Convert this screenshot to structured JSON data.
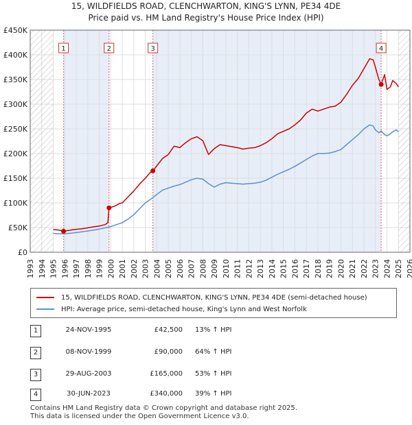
{
  "header": {
    "title_line1": "15, WILDFIELDS ROAD, CLENCHWARTON, KING'S LYNN, PE34 4DE",
    "title_line2": "Price paid vs. HM Land Registry's House Price Index (HPI)"
  },
  "colors": {
    "price_line": "#cc0000",
    "hpi_line": "#5b8fcf",
    "shade": "#e8eef8",
    "marker_line": "#e06060"
  },
  "chart_data": {
    "type": "line",
    "title": "Price paid vs. HM Land Registry's House Price Index (HPI)",
    "xlabel": "",
    "ylabel": "",
    "xlim": [
      1993,
      2026
    ],
    "ylim": [
      0,
      450000
    ],
    "y_ticks": [
      0,
      50000,
      100000,
      150000,
      200000,
      250000,
      300000,
      350000,
      400000,
      450000
    ],
    "y_tick_labels": [
      "£0",
      "£50K",
      "£100K",
      "£150K",
      "£200K",
      "£250K",
      "£300K",
      "£350K",
      "£400K",
      "£450K"
    ],
    "x_ticks": [
      1993,
      1994,
      1995,
      1996,
      1997,
      1998,
      1999,
      2000,
      2001,
      2002,
      2003,
      2004,
      2005,
      2006,
      2007,
      2008,
      2009,
      2010,
      2011,
      2012,
      2013,
      2014,
      2015,
      2016,
      2017,
      2018,
      2019,
      2020,
      2021,
      2022,
      2023,
      2024,
      2025,
      2026
    ],
    "hatched_ranges": [
      [
        1993,
        1995.0
      ],
      [
        2025.0,
        2026
      ]
    ],
    "shaded_ranges": [
      [
        1995.9,
        1999.85
      ],
      [
        2003.66,
        2023.5
      ]
    ],
    "series": [
      {
        "name": "15, WILDFIELDS ROAD, CLENCHWARTON, KING'S LYNN, PE34 4DE (semi-detached house)",
        "x": [
          1995.0,
          1995.5,
          1995.9,
          1996.3,
          1996.8,
          1997.5,
          1998.0,
          1998.5,
          1999.0,
          1999.5,
          1999.75,
          1999.85,
          2000.3,
          2000.8,
          2001.0,
          2001.5,
          2002.0,
          2002.5,
          2003.0,
          2003.4,
          2003.66,
          2004.0,
          2004.5,
          2005.0,
          2005.5,
          2006.0,
          2006.5,
          2007.0,
          2007.5,
          2008.0,
          2008.5,
          2009.0,
          2009.5,
          2010.0,
          2010.5,
          2011.0,
          2011.5,
          2012.0,
          2012.5,
          2013.0,
          2013.5,
          2014.0,
          2014.5,
          2015.0,
          2015.5,
          2016.0,
          2016.5,
          2017.0,
          2017.5,
          2018.0,
          2018.5,
          2019.0,
          2019.5,
          2020.0,
          2020.5,
          2021.0,
          2021.5,
          2022.0,
          2022.5,
          2022.8,
          2023.0,
          2023.3,
          2023.5,
          2023.8,
          2024.0,
          2024.3,
          2024.5,
          2024.8,
          2025.0
        ],
        "values": [
          46000,
          45000,
          42500,
          44000,
          46000,
          47500,
          49500,
          51500,
          53000,
          56000,
          60000,
          90000,
          93000,
          99000,
          100000,
          112000,
          124000,
          138000,
          150000,
          161000,
          165000,
          175000,
          190000,
          198000,
          215000,
          212000,
          222000,
          230000,
          234000,
          226000,
          198000,
          210000,
          218000,
          216000,
          214000,
          212000,
          209000,
          211000,
          212000,
          216000,
          222000,
          230000,
          240000,
          245000,
          250000,
          258000,
          268000,
          282000,
          290000,
          286000,
          290000,
          294000,
          296000,
          304000,
          320000,
          338000,
          352000,
          372000,
          392000,
          390000,
          375000,
          350000,
          340000,
          360000,
          330000,
          335000,
          348000,
          342000,
          335000
        ]
      },
      {
        "name": "HPI: Average price, semi-detached house, King's Lynn and West Norfolk",
        "x": [
          1995.0,
          1995.5,
          1996.0,
          1996.5,
          1997.0,
          1997.5,
          1998.0,
          1998.5,
          1999.0,
          1999.5,
          2000.0,
          2000.5,
          2001.0,
          2001.5,
          2002.0,
          2002.5,
          2003.0,
          2003.5,
          2004.0,
          2004.5,
          2005.0,
          2005.5,
          2006.0,
          2006.5,
          2007.0,
          2007.5,
          2008.0,
          2008.5,
          2009.0,
          2009.5,
          2010.0,
          2010.5,
          2011.0,
          2011.5,
          2012.0,
          2012.5,
          2013.0,
          2013.5,
          2014.0,
          2014.5,
          2015.0,
          2015.5,
          2016.0,
          2016.5,
          2017.0,
          2017.5,
          2018.0,
          2018.5,
          2019.0,
          2019.5,
          2020.0,
          2020.5,
          2021.0,
          2021.5,
          2022.0,
          2022.5,
          2022.8,
          2023.0,
          2023.3,
          2023.5,
          2023.8,
          2024.0,
          2024.3,
          2024.5,
          2024.8,
          2025.0
        ],
        "values": [
          38000,
          37500,
          37500,
          38500,
          40000,
          41500,
          43000,
          45000,
          47000,
          49500,
          52000,
          56000,
          60000,
          67000,
          76000,
          88000,
          100000,
          108000,
          117000,
          126000,
          130000,
          134000,
          137000,
          142000,
          147000,
          150000,
          148000,
          139000,
          132000,
          138000,
          141000,
          140000,
          139000,
          138000,
          139000,
          140000,
          142000,
          146000,
          152000,
          158000,
          163000,
          168000,
          174000,
          181000,
          188000,
          195000,
          200000,
          200000,
          201000,
          204000,
          208000,
          218000,
          228000,
          238000,
          250000,
          258000,
          256000,
          248000,
          242000,
          246000,
          238000,
          236000,
          240000,
          244000,
          248000,
          244000
        ]
      }
    ],
    "sale_markers": [
      {
        "label": "1",
        "x": 1995.9,
        "value": 42500
      },
      {
        "label": "2",
        "x": 1999.85,
        "value": 90000
      },
      {
        "label": "3",
        "x": 2003.66,
        "value": 165000
      },
      {
        "label": "4",
        "x": 2023.5,
        "value": 340000
      }
    ]
  },
  "legend": {
    "price_label": "15, WILDFIELDS ROAD, CLENCHWARTON, KING'S LYNN, PE34 4DE (semi-detached house)",
    "hpi_label": "HPI: Average price, semi-detached house, King's Lynn and West Norfolk"
  },
  "transactions": [
    {
      "num": "1",
      "date": "24-NOV-1995",
      "price": "£42,500",
      "hpi": "13% ↑ HPI"
    },
    {
      "num": "2",
      "date": "08-NOV-1999",
      "price": "£90,000",
      "hpi": "64% ↑ HPI"
    },
    {
      "num": "3",
      "date": "29-AUG-2003",
      "price": "£165,000",
      "hpi": "53% ↑ HPI"
    },
    {
      "num": "4",
      "date": "30-JUN-2023",
      "price": "£340,000",
      "hpi": "39% ↑ HPI"
    }
  ],
  "footer": {
    "line1": "Contains HM Land Registry data © Crown copyright and database right 2025.",
    "line2": "This data is licensed under the Open Government Licence v3.0."
  }
}
